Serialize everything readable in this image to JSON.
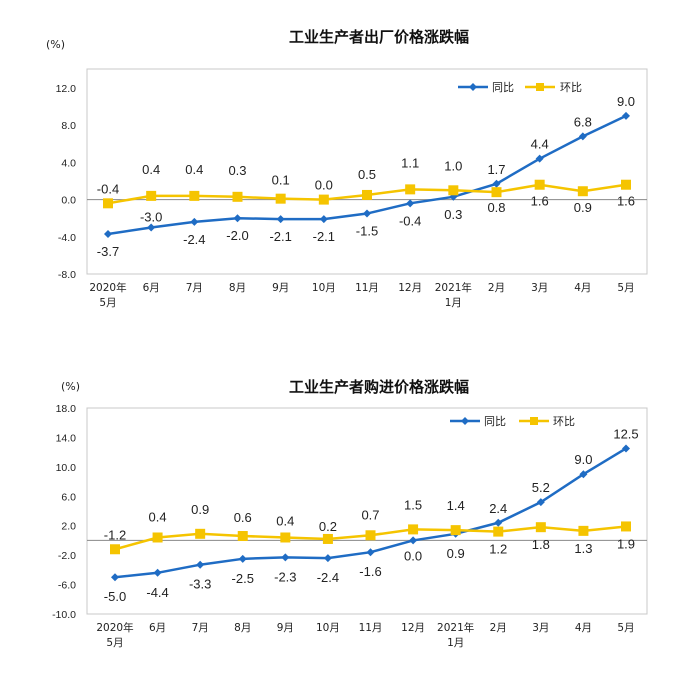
{
  "chart_data": [
    {
      "type": "line",
      "title": "工业生产者出厂价格涨跌幅",
      "unit": "(%)",
      "categories": [
        [
          "2020年",
          "5月"
        ],
        [
          "6月"
        ],
        [
          "7月"
        ],
        [
          "8月"
        ],
        [
          "9月"
        ],
        [
          "10月"
        ],
        [
          "11月"
        ],
        [
          "12月"
        ],
        [
          "2021年",
          "1月"
        ],
        [
          "2月"
        ],
        [
          "3月"
        ],
        [
          "4月"
        ],
        [
          "5月"
        ]
      ],
      "yticks": [
        "12.0",
        "8.0",
        "4.0",
        "0.0",
        "-4.0",
        "-8.0"
      ],
      "ylim": [
        -8,
        12
      ],
      "legend_position": "top-right",
      "series": [
        {
          "name": "同比",
          "color": "#1f6cc4",
          "marker": "diamond",
          "values": [
            -3.7,
            -3.0,
            -2.4,
            -2.0,
            -2.1,
            -2.1,
            -1.5,
            -0.4,
            0.3,
            1.7,
            4.4,
            6.8,
            9.0
          ],
          "labels": [
            "-3.7",
            "-3.0",
            "-2.4",
            "-2.0",
            "-2.1",
            "-2.1",
            "-1.5",
            "-0.4",
            "0.3",
            "1.7",
            "4.4",
            "6.8",
            "9.0"
          ]
        },
        {
          "name": "环比",
          "color": "#f5c400",
          "marker": "square",
          "values": [
            -0.4,
            0.4,
            0.4,
            0.3,
            0.1,
            0.0,
            0.5,
            1.1,
            1.0,
            0.8,
            1.6,
            0.9,
            1.6
          ],
          "labels": [
            "-0.4",
            "0.4",
            "0.4",
            "0.3",
            "0.1",
            "0.0",
            "0.5",
            "1.1",
            "1.0",
            "0.8",
            "1.6",
            "0.9",
            "1.6"
          ]
        }
      ]
    },
    {
      "type": "line",
      "title": "工业生产者购进价格涨跌幅",
      "unit": "(%)",
      "categories": [
        [
          "2020年",
          "5月"
        ],
        [
          "6月"
        ],
        [
          "7月"
        ],
        [
          "8月"
        ],
        [
          "9月"
        ],
        [
          "10月"
        ],
        [
          "11月"
        ],
        [
          "12月"
        ],
        [
          "2021年",
          "1月"
        ],
        [
          "2月"
        ],
        [
          "3月"
        ],
        [
          "4月"
        ],
        [
          "5月"
        ]
      ],
      "yticks": [
        "18.0",
        "14.0",
        "10.0",
        "6.0",
        "2.0",
        "-2.0",
        "-6.0",
        "-10.0"
      ],
      "ylim": [
        -10,
        18
      ],
      "legend_position": "top-right",
      "series": [
        {
          "name": "同比",
          "color": "#1f6cc4",
          "marker": "diamond",
          "values": [
            -5.0,
            -4.4,
            -3.3,
            -2.5,
            -2.3,
            -2.4,
            -1.6,
            0.0,
            0.9,
            2.4,
            5.2,
            9.0,
            12.5
          ],
          "labels": [
            "-5.0",
            "-4.4",
            "-3.3",
            "-2.5",
            "-2.3",
            "-2.4",
            "-1.6",
            "0.0",
            "0.9",
            "2.4",
            "5.2",
            "9.0",
            "12.5"
          ]
        },
        {
          "name": "环比",
          "color": "#f5c400",
          "marker": "square",
          "values": [
            -1.2,
            0.4,
            0.9,
            0.6,
            0.4,
            0.2,
            0.7,
            1.5,
            1.4,
            1.2,
            1.8,
            1.3,
            1.9
          ],
          "labels": [
            "-1.2",
            "0.4",
            "0.9",
            "0.6",
            "0.4",
            "0.2",
            "0.7",
            "1.5",
            "1.4",
            "1.2",
            "1.8",
            "1.3",
            "1.9"
          ]
        }
      ]
    }
  ]
}
